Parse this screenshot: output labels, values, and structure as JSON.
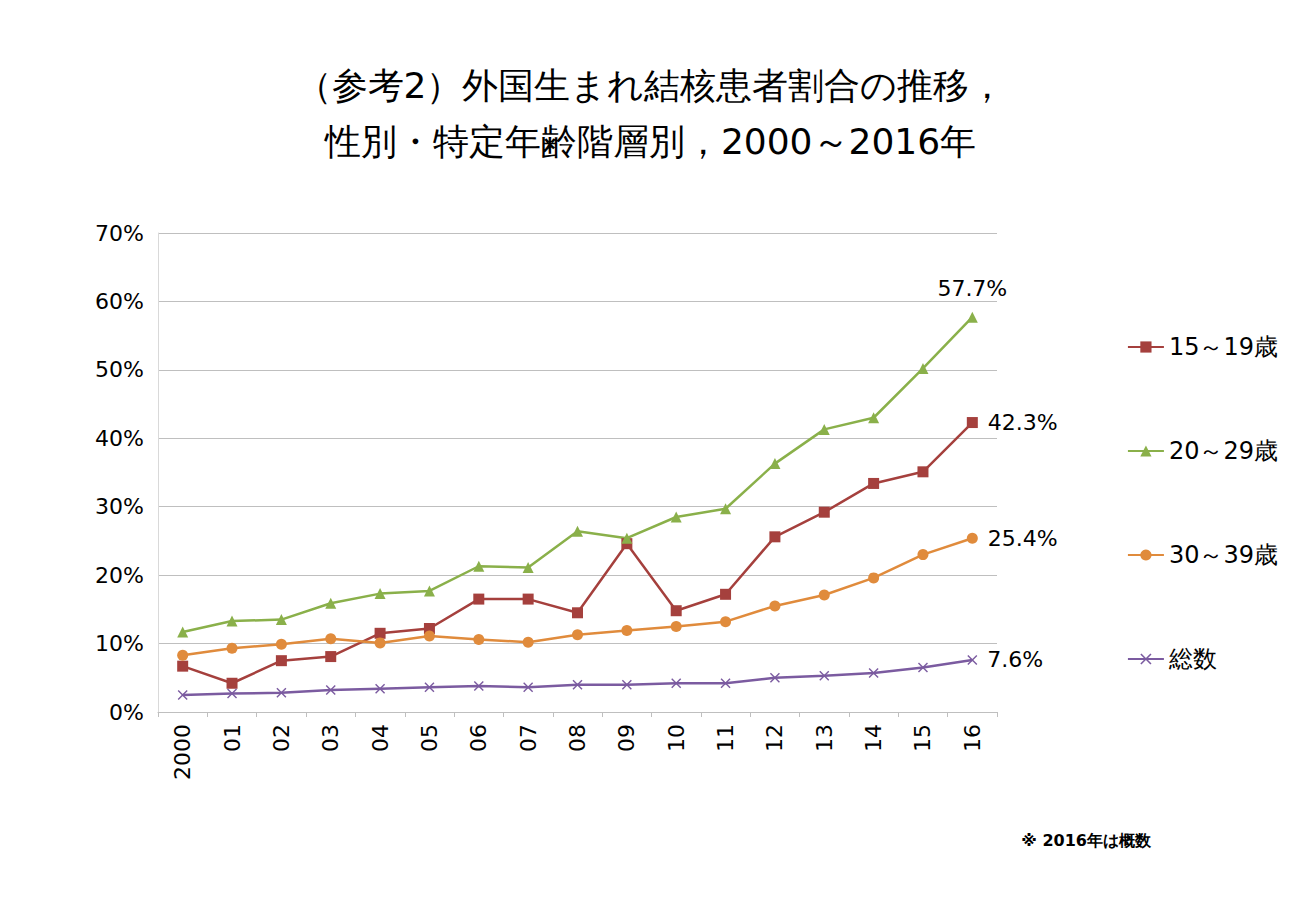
{
  "chart_data": {
    "type": "line",
    "title": "（参考2）外国生まれ結核患者割合の推移，\n性別・特定年齢階層別，2000～2016年",
    "note": "※ 2016年は概数",
    "categories": [
      "2000",
      "01",
      "02",
      "03",
      "04",
      "05",
      "06",
      "07",
      "08",
      "09",
      "10",
      "11",
      "12",
      "13",
      "14",
      "15",
      "16"
    ],
    "series": [
      {
        "name": "15～19歳",
        "color": "#a5403d",
        "marker": "square",
        "values": [
          6.7,
          4.2,
          7.5,
          8.1,
          11.5,
          12.2,
          16.5,
          16.5,
          14.5,
          24.6,
          14.8,
          17.2,
          25.6,
          29.2,
          33.4,
          35.1,
          42.3
        ]
      },
      {
        "name": "20～29歳",
        "color": "#8ab04a",
        "marker": "triangle",
        "values": [
          11.7,
          13.3,
          13.5,
          15.9,
          17.3,
          17.7,
          21.3,
          21.1,
          26.4,
          25.4,
          28.5,
          29.7,
          36.3,
          41.3,
          43.0,
          50.2,
          57.7
        ]
      },
      {
        "name": "30～39歳",
        "color": "#e08b3c",
        "marker": "circle",
        "values": [
          8.3,
          9.3,
          9.9,
          10.7,
          10.1,
          11.1,
          10.6,
          10.2,
          11.3,
          11.9,
          12.5,
          13.2,
          15.5,
          17.1,
          19.6,
          23.0,
          25.4
        ]
      },
      {
        "name": "総数",
        "color": "#7b5ba0",
        "marker": "x",
        "values": [
          2.5,
          2.7,
          2.8,
          3.2,
          3.4,
          3.6,
          3.8,
          3.6,
          4.0,
          4.0,
          4.2,
          4.2,
          5.0,
          5.3,
          5.7,
          6.5,
          7.6
        ]
      }
    ],
    "annotations": [
      {
        "text": "57.7%",
        "series": "20～29歳",
        "x": "16"
      },
      {
        "text": "42.3%",
        "series": "15～19歳",
        "x": "16"
      },
      {
        "text": "25.4%",
        "series": "30～39歳",
        "x": "16"
      },
      {
        "text": "7.6%",
        "series": "総数",
        "x": "16"
      }
    ],
    "ylim": [
      0,
      70
    ],
    "yticks": [
      {
        "value": 0,
        "label": "0%"
      },
      {
        "value": 10,
        "label": "10%"
      },
      {
        "value": 20,
        "label": "20%"
      },
      {
        "value": 30,
        "label": "30%"
      },
      {
        "value": 40,
        "label": "40%"
      },
      {
        "value": 50,
        "label": "50%"
      },
      {
        "value": 60,
        "label": "60%"
      },
      {
        "value": 70,
        "label": "70%"
      }
    ],
    "grid": true,
    "legend": "right"
  }
}
